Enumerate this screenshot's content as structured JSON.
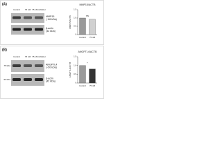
{
  "panels": [
    {
      "label": "(A)",
      "blot": {
        "columns": [
          "Control",
          "75 nM",
          "75 nM inhibitor"
        ],
        "bands": [
          {
            "name": "MMP15",
            "size": "(~66 kDa)"
          },
          {
            "name": "β-actin",
            "size": "(42 kDa)"
          }
        ]
      }
    },
    {
      "label": "(B)",
      "blot": {
        "columns": [
          "Control",
          "75 nM",
          "75 nM inhibitor"
        ],
        "markers": [
          "75 kDa",
          "50 kDa"
        ],
        "bands": [
          {
            "name": "ANGPTL4",
            "size": "(~50 kDa)"
          },
          {
            "name": "β-actin",
            "size": "(42 kDa)"
          }
        ]
      }
    }
  ],
  "chart_data": [
    {
      "type": "bar",
      "title": "MMP15/ACTB",
      "y_label": "MMP15/ACTB",
      "categories": [
        "Control",
        "75 nM"
      ],
      "values": [
        1.0,
        0.92
      ],
      "colors": [
        "#9a9a9a",
        "#d0d0d0"
      ],
      "annotation": "ns",
      "ylim": [
        0,
        1.5
      ],
      "yticks": [
        0,
        0.5,
        {
          "value": 1,
          "label": "1.0"
        },
        1.5
      ]
    },
    {
      "type": "bar",
      "title": "ANGPTL4/ACTB",
      "y_label": "ANGPTL4/ACTB",
      "categories": [
        "Control",
        "75 nM"
      ],
      "values": [
        1.0,
        0.8
      ],
      "colors": [
        "#9a9a9a",
        "#333333"
      ],
      "annotation": "*",
      "ylim": [
        0,
        1.5
      ],
      "yticks": [
        0,
        0.5,
        {
          "value": 1,
          "label": "1.0"
        },
        1.5
      ]
    }
  ]
}
